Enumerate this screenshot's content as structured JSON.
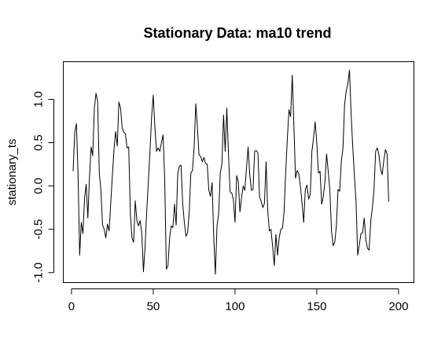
{
  "chart_data": {
    "type": "line",
    "title": "Stationary Data: ma10 trend",
    "xlabel": "",
    "ylabel": "stationary_ts",
    "xlim": [
      1,
      201
    ],
    "ylim": [
      -1.02,
      1.34
    ],
    "x_ticks": [
      0,
      50,
      100,
      150,
      200
    ],
    "x_tick_labels": [
      "0",
      "50",
      "100",
      "150",
      "200"
    ],
    "y_ticks": [
      -1.0,
      -0.5,
      0.0,
      0.5,
      1.0
    ],
    "y_tick_labels": [
      "-1.0",
      "-0.5",
      "0.0",
      "0.5",
      "1.0"
    ],
    "grid": false,
    "series": [
      {
        "color": "#000000",
        "x_start": 1,
        "x_step": 1,
        "values": [
          0.17,
          0.62,
          0.72,
          0.15,
          -0.8,
          -0.42,
          -0.55,
          -0.14,
          0.02,
          -0.37,
          0.1,
          0.45,
          0.35,
          0.9,
          1.07,
          0.98,
          0.15,
          -0.05,
          -0.45,
          -0.5,
          -0.6,
          -0.44,
          -0.52,
          -0.2,
          0.12,
          0.42,
          0.63,
          0.46,
          0.97,
          0.9,
          0.67,
          0.62,
          0.6,
          0.44,
          0.45,
          -0.32,
          -0.6,
          -0.65,
          -0.17,
          -0.4,
          -0.46,
          -0.4,
          -0.55,
          -0.99,
          -0.7,
          -0.3,
          0.05,
          0.4,
          0.8,
          1.05,
          0.68,
          0.4,
          0.44,
          0.4,
          0.5,
          0.59,
          0.08,
          -0.96,
          -0.92,
          -0.6,
          -0.46,
          -0.48,
          -0.21,
          -0.45,
          0.15,
          0.23,
          0.24,
          -0.2,
          -0.42,
          -0.58,
          -0.54,
          -0.3,
          0.15,
          0.18,
          0.45,
          0.95,
          0.68,
          0.36,
          0.34,
          0.28,
          0.33,
          0.26,
          0.25,
          -0.05,
          -0.12,
          0.04,
          -0.6,
          -1.02,
          -0.46,
          -0.32,
          0.15,
          0.26,
          0.82,
          0.4,
          0.9,
          0.37,
          -0.07,
          -0.08,
          -0.16,
          -0.42,
          0.12,
          0.05,
          -0.3,
          -0.13,
          0.0,
          -0.05,
          0.2,
          0.45,
          0.14,
          -0.05,
          -0.04,
          0.4,
          0.41,
          0.38,
          -0.12,
          -0.18,
          -0.25,
          -0.2,
          0.28,
          -0.28,
          -0.52,
          -0.5,
          -0.7,
          -0.92,
          -0.56,
          -0.8,
          -0.6,
          -0.5,
          -0.49,
          -0.3,
          0.16,
          0.55,
          0.88,
          0.8,
          1.28,
          0.7,
          0.09,
          0.18,
          0.14,
          0.0,
          -0.2,
          -0.42,
          -0.04,
          0.01,
          -0.15,
          -0.1,
          0.4,
          0.55,
          0.74,
          0.5,
          0.15,
          0.17,
          -0.21,
          -0.12,
          0.05,
          0.37,
          0.17,
          -0.05,
          -0.52,
          -0.69,
          -0.65,
          -0.46,
          -0.04,
          -0.06,
          0.28,
          0.43,
          0.94,
          1.1,
          1.18,
          1.34,
          0.83,
          0.45,
          0.12,
          -0.18,
          -0.8,
          -0.68,
          -0.55,
          -0.54,
          -0.37,
          -0.62,
          -0.72,
          -0.74,
          -0.41,
          -0.25,
          -0.04,
          0.4,
          0.44,
          0.36,
          0.2,
          0.13,
          0.3,
          0.42,
          0.37,
          -0.18
        ]
      }
    ]
  }
}
